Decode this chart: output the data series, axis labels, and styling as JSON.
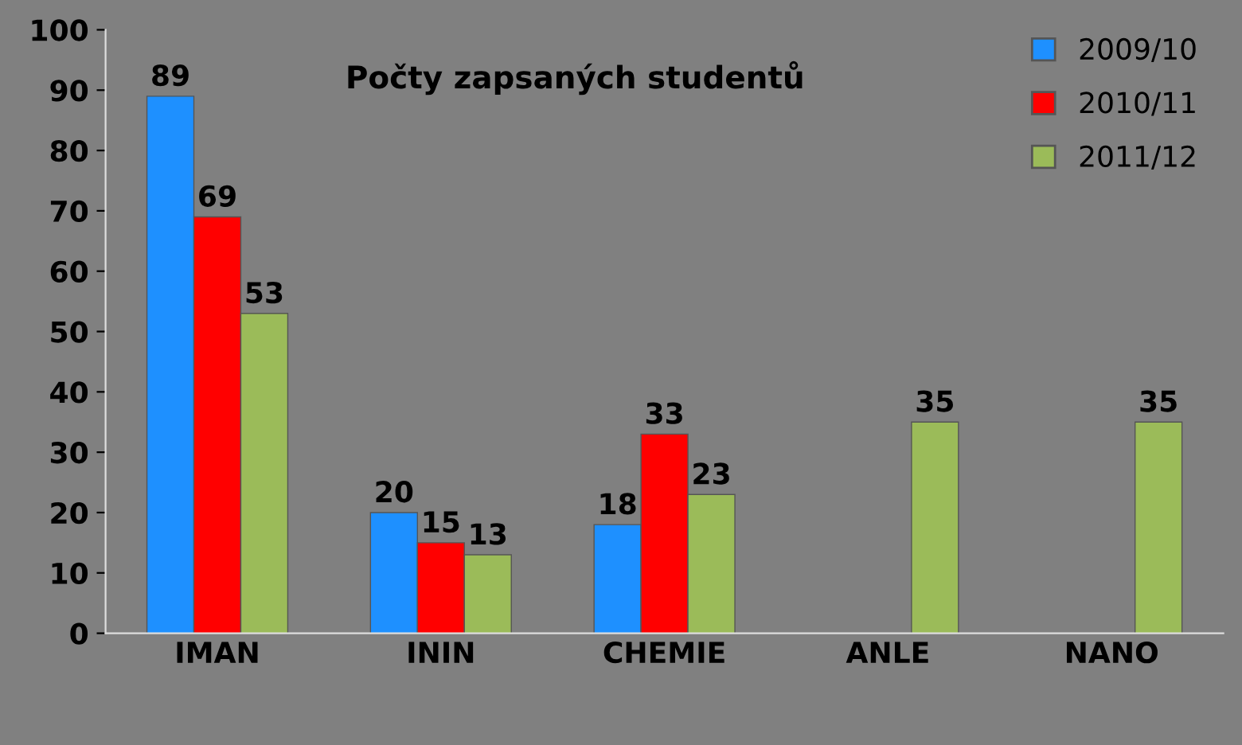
{
  "chart_data": {
    "type": "bar",
    "title": "Počty zapsaných studentů",
    "categories": [
      "IMAN",
      "ININ",
      "CHEMIE",
      "ANLE",
      "NANO"
    ],
    "series": [
      {
        "name": "2009/10",
        "color": "#1e90ff",
        "values": [
          89,
          20,
          18,
          null,
          null
        ]
      },
      {
        "name": "2010/11",
        "color": "#ff0000",
        "values": [
          69,
          15,
          33,
          null,
          null
        ]
      },
      {
        "name": "2011/12",
        "color": "#9bbb59",
        "values": [
          53,
          13,
          23,
          35,
          35
        ]
      }
    ],
    "ylim": [
      0,
      100
    ],
    "yticks": [
      0,
      10,
      20,
      30,
      40,
      50,
      60,
      70,
      80,
      90,
      100
    ],
    "grid": false,
    "legend": "top right",
    "data_labels": true
  }
}
